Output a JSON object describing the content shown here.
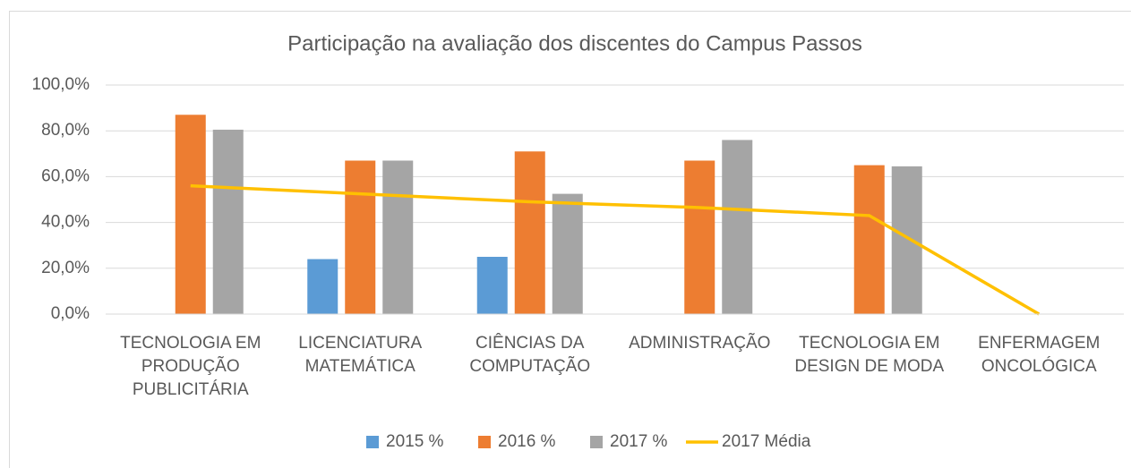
{
  "chart_data": {
    "type": "bar",
    "title": "Participação na avaliação dos discentes do Campus Passos",
    "categories": [
      "TECNOLOGIA EM PRODUÇÃO PUBLICITÁRIA",
      "LICENCIATURA MATEMÁTICA",
      "CIÊNCIAS DA COMPUTAÇÃO",
      "ADMINISTRAÇÃO",
      "TECNOLOGIA EM DESIGN DE MODA",
      "ENFERMAGEM ONCOLÓGICA"
    ],
    "series": [
      {
        "name": "2015 %",
        "type": "bar",
        "color": "#5b9bd5",
        "values": [
          null,
          24,
          25,
          null,
          null,
          null
        ]
      },
      {
        "name": "2016 %",
        "type": "bar",
        "color": "#ed7d31",
        "values": [
          87,
          67,
          71,
          67,
          65,
          null
        ]
      },
      {
        "name": "2017 %",
        "type": "bar",
        "color": "#a5a5a5",
        "values": [
          80.5,
          67,
          52.5,
          76,
          64.5,
          null
        ]
      },
      {
        "name": "2017 Média",
        "type": "line",
        "color": "#ffc000",
        "values": [
          56,
          52.5,
          49,
          46.5,
          43,
          0
        ]
      }
    ],
    "ylim": [
      0,
      100
    ],
    "yticks": [
      {
        "value": 0,
        "label": "0,0%"
      },
      {
        "value": 20,
        "label": "20,0%"
      },
      {
        "value": 40,
        "label": "40,0%"
      },
      {
        "value": 60,
        "label": "60,0%"
      },
      {
        "value": 80,
        "label": "80,0%"
      },
      {
        "value": 100,
        "label": "100,0%"
      }
    ],
    "grid": true,
    "legend": "bottom"
  }
}
